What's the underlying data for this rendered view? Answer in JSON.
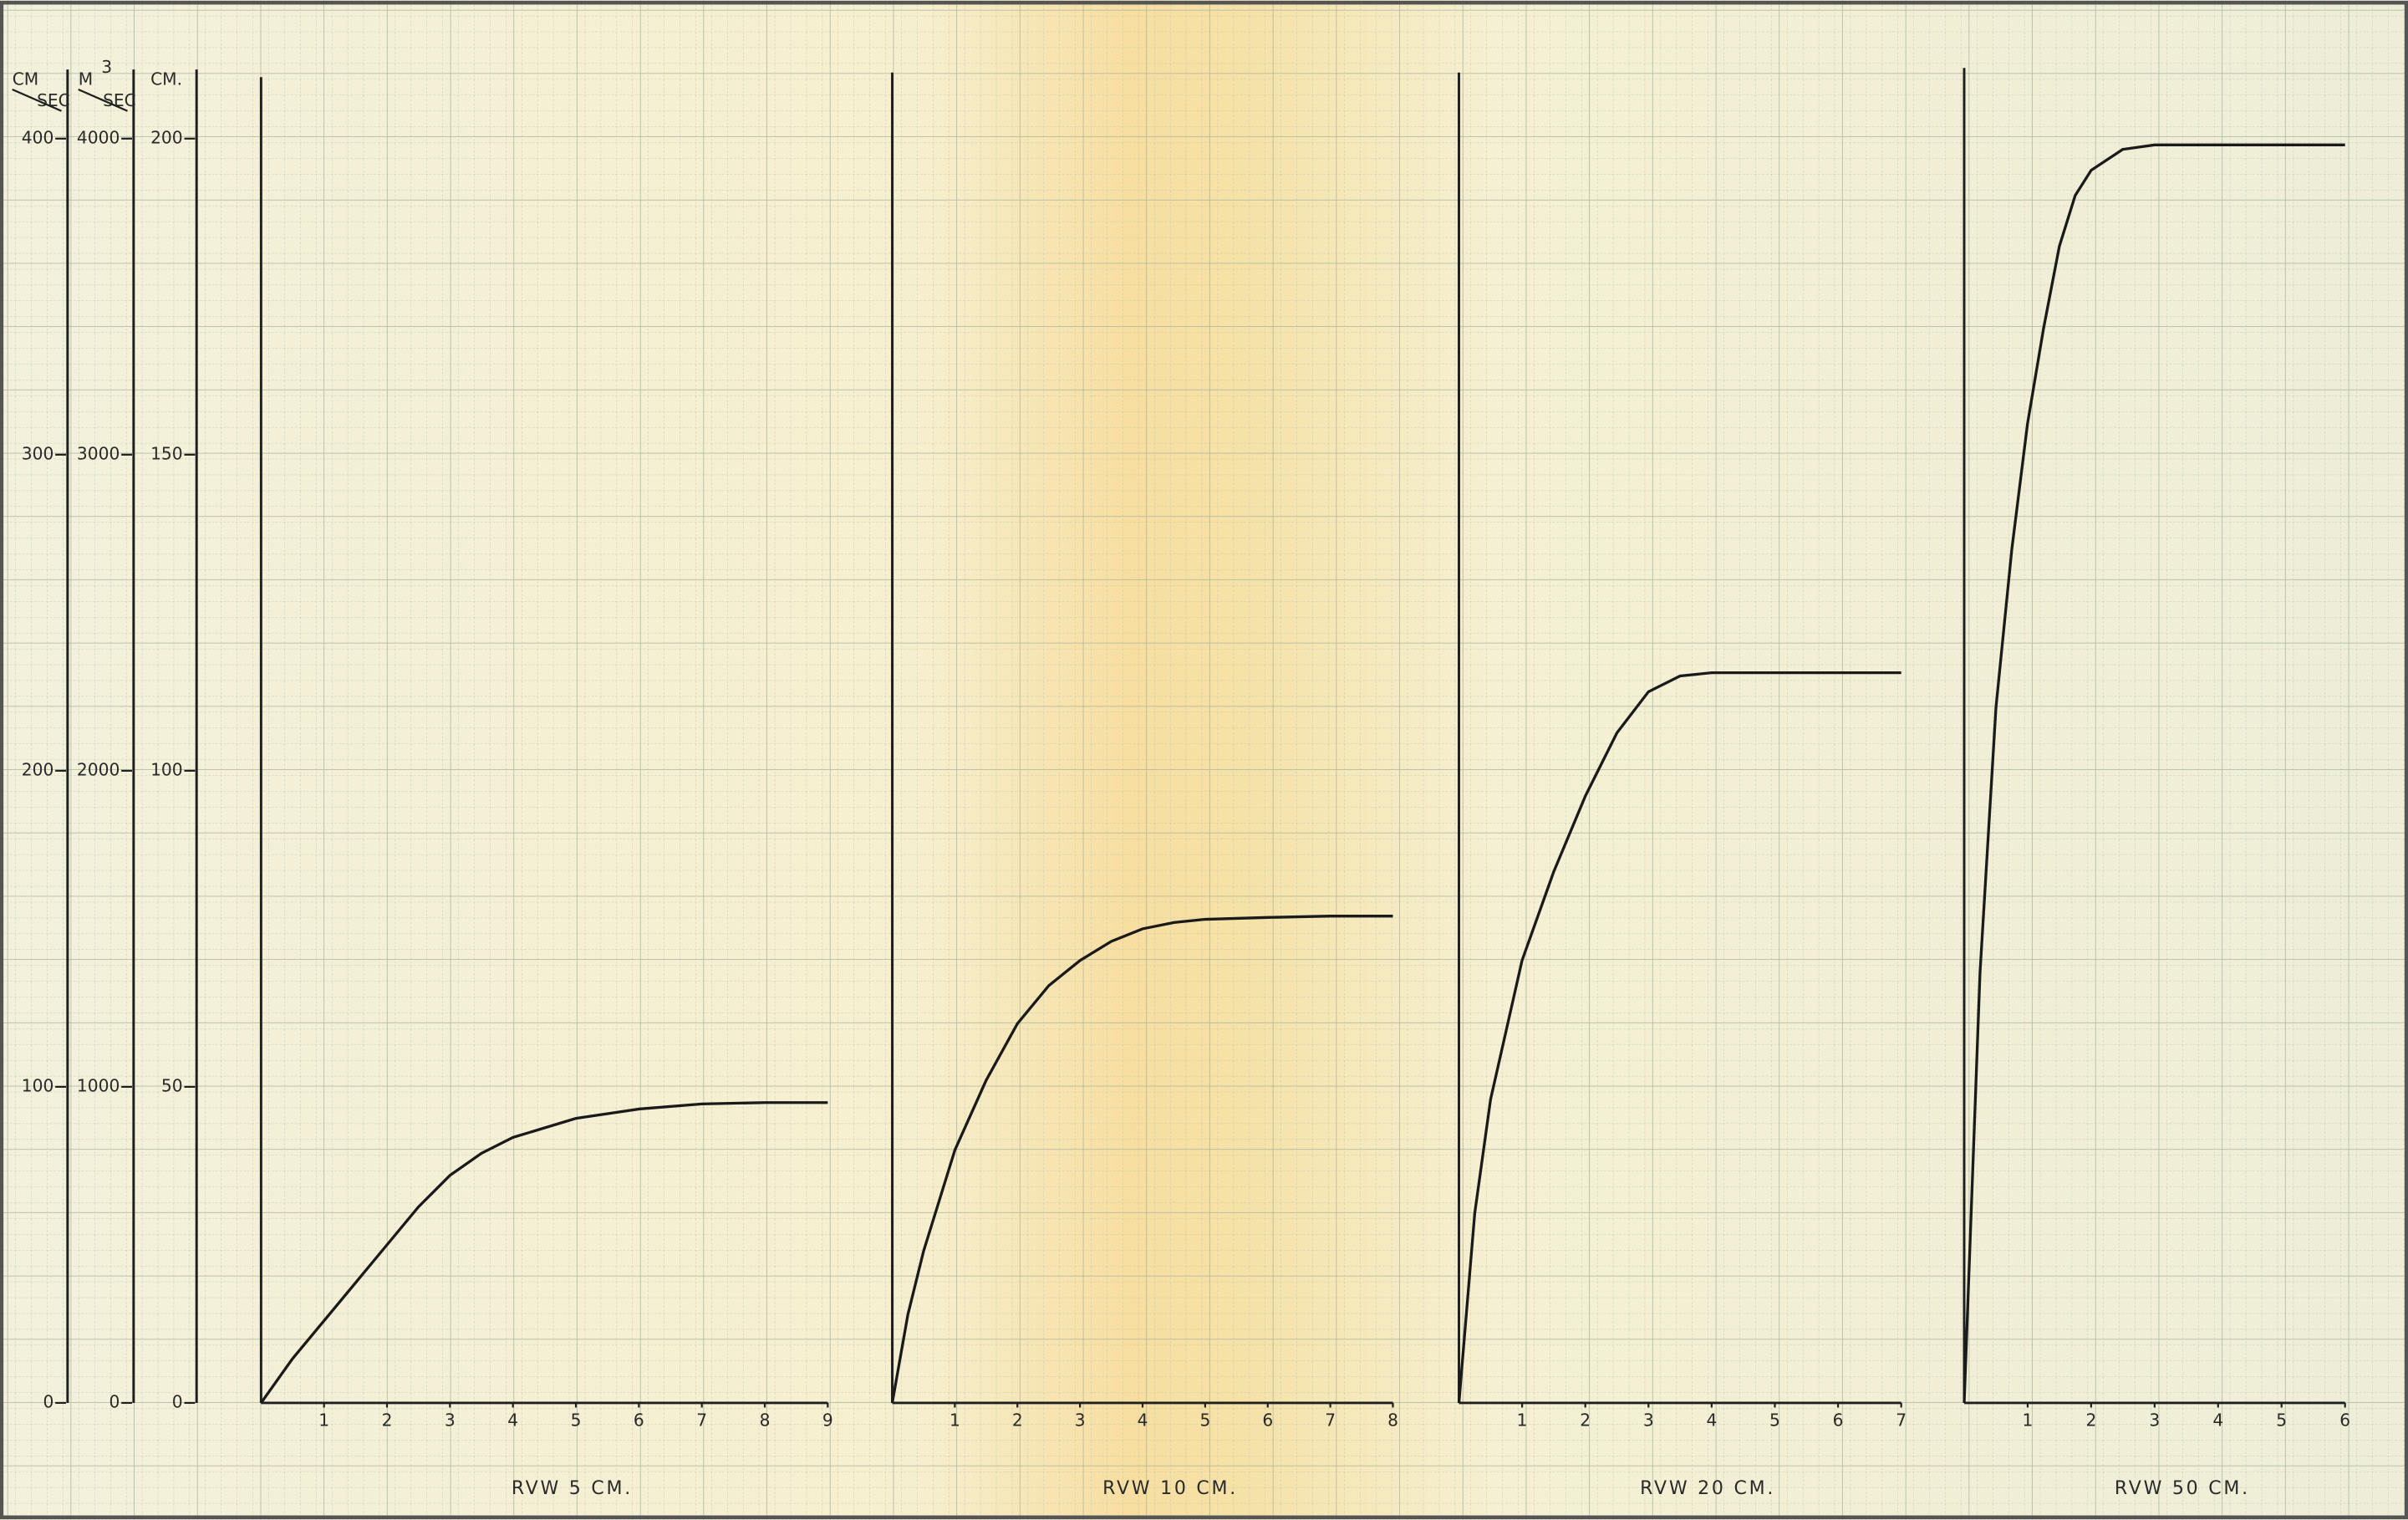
{
  "chart_data": {
    "type": "line",
    "color": "#1a1a1a",
    "y_axes": [
      {
        "numerator": "CM",
        "denominator": "SEC",
        "ylim": [
          0,
          400
        ],
        "yticks": [
          0,
          100,
          200,
          300,
          400
        ]
      },
      {
        "numerator": "M",
        "exponent": "3",
        "denominator": "SEC",
        "ylim": [
          0,
          4000
        ],
        "yticks": [
          0,
          1000,
          2000,
          3000,
          4000
        ]
      },
      {
        "label": "CM.",
        "ylim": [
          0,
          200
        ],
        "yticks": [
          0,
          50,
          100,
          150,
          200
        ]
      }
    ],
    "panels": [
      {
        "label": "RVW 5 CM.",
        "xlim": [
          0,
          9
        ],
        "xticks": [
          1,
          2,
          3,
          4,
          5,
          6,
          7,
          8,
          9
        ],
        "x": [
          0,
          0.5,
          1,
          1.5,
          2,
          2.5,
          3,
          3.5,
          4,
          5,
          6,
          7,
          8,
          9
        ],
        "values": [
          0,
          7,
          13,
          19,
          25,
          31,
          36,
          39.5,
          42,
          45,
          46.5,
          47.3,
          47.5,
          47.5
        ]
      },
      {
        "label": "RVW 10 CM.",
        "xlim": [
          0,
          8
        ],
        "xticks": [
          1,
          2,
          3,
          4,
          5,
          6,
          7,
          8
        ],
        "x": [
          0,
          0.25,
          0.5,
          1,
          1.5,
          2,
          2.5,
          3,
          3.5,
          4,
          4.5,
          5,
          6,
          7,
          8
        ],
        "values": [
          0,
          14,
          24,
          40,
          51,
          60,
          66,
          70,
          73,
          75,
          76,
          76.5,
          76.8,
          77,
          77
        ]
      },
      {
        "label": "RVW 20 CM.",
        "xlim": [
          0,
          7
        ],
        "xticks": [
          1,
          2,
          3,
          4,
          5,
          6,
          7
        ],
        "x": [
          0,
          0.25,
          0.5,
          1,
          1.5,
          2,
          2.5,
          3,
          3.5,
          4,
          5,
          6,
          7
        ],
        "values": [
          0,
          30,
          48,
          70,
          84,
          96,
          106,
          112.5,
          115,
          115.5,
          115.5,
          115.5,
          115.5
        ]
      },
      {
        "label": "RVW 50 CM.",
        "xlim": [
          0,
          6
        ],
        "xticks": [
          1,
          2,
          3,
          4,
          5,
          6
        ],
        "x": [
          0,
          0.25,
          0.5,
          0.75,
          1,
          1.25,
          1.5,
          1.75,
          2,
          2.5,
          3,
          4,
          5,
          6
        ],
        "values": [
          0,
          68,
          110,
          135,
          155,
          170,
          183,
          191,
          195,
          198.3,
          199,
          199,
          199,
          199
        ]
      }
    ]
  }
}
